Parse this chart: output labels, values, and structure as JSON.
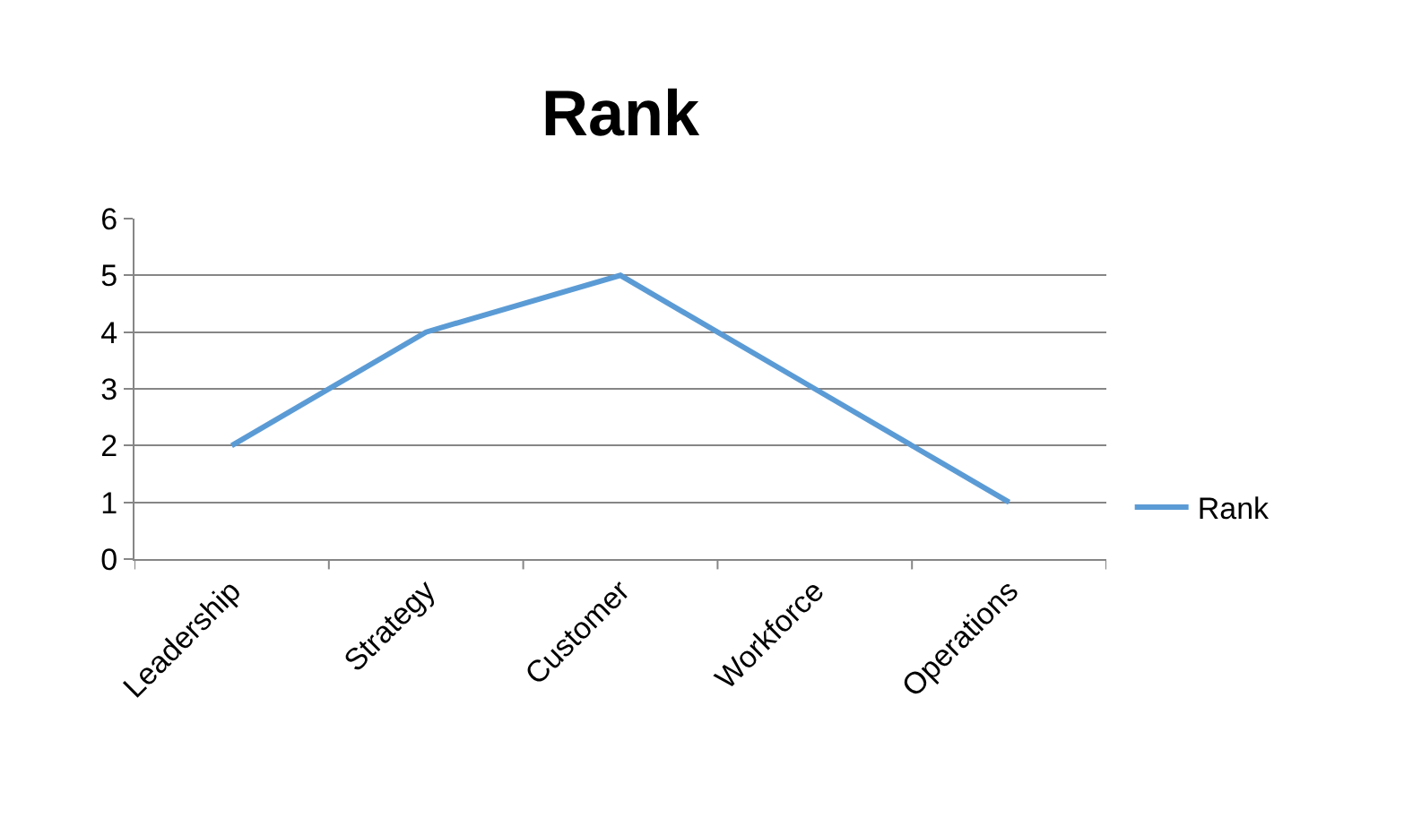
{
  "chart_data": {
    "type": "line",
    "title": "Rank",
    "categories": [
      "Leadership",
      "Strategy",
      "Customer",
      "Workforce",
      "Operations"
    ],
    "series": [
      {
        "name": "Rank",
        "color": "#5b9bd5",
        "values": [
          2,
          4,
          5,
          3,
          1
        ]
      }
    ],
    "ylim": [
      0,
      6
    ],
    "yticks": [
      0,
      1,
      2,
      3,
      4,
      5,
      6
    ],
    "grid": "y",
    "legend": "right",
    "marker": "none",
    "line_style": "solid"
  }
}
